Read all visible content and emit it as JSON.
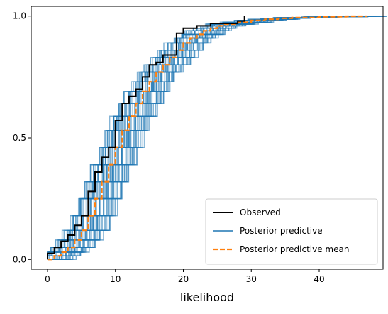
{
  "chart_data": {
    "type": "line",
    "title": "",
    "xlabel": "likelihood",
    "ylabel": "",
    "xlim": [
      -2.4,
      49.4
    ],
    "ylim": [
      -0.04,
      1.04
    ],
    "x_ticks": [
      0,
      10,
      20,
      30,
      40
    ],
    "x_tick_labels": [
      "0",
      "10",
      "20",
      "30",
      "40"
    ],
    "y_ticks": [
      0,
      0.5,
      1
    ],
    "y_tick_labels": [
      "0.0",
      "0.5",
      "1.0"
    ],
    "grid": false,
    "legend_position": "lower-right",
    "colors": {
      "observed": "#000000",
      "posterior_predictive": "#1f77b4",
      "posterior_predictive_mean": "#ff7f0e",
      "frame": "#000000"
    },
    "series": [
      {
        "name": "Observed",
        "style": "step",
        "x": [
          0,
          0,
          1,
          2,
          3,
          4,
          5,
          6,
          7,
          8,
          9,
          10,
          11,
          12,
          13,
          14,
          15,
          16,
          17,
          19,
          20,
          22,
          24,
          28,
          29
        ],
        "y": [
          0,
          0.025,
          0.05,
          0.075,
          0.1,
          0.14,
          0.18,
          0.28,
          0.36,
          0.42,
          0.46,
          0.57,
          0.64,
          0.67,
          0.7,
          0.75,
          0.8,
          0.81,
          0.84,
          0.93,
          0.95,
          0.96,
          0.97,
          0.98,
          1.0
        ]
      },
      {
        "name": "Posterior predictive",
        "style": "step",
        "note_count": 40,
        "x_shift_range": [
          -2.5,
          3.0
        ]
      },
      {
        "name": "Posterior predictive mean",
        "style": "dashed-step",
        "x": [
          0,
          1,
          2,
          3,
          4,
          5,
          6,
          7,
          8,
          9,
          10,
          11,
          12,
          13,
          14,
          15,
          16,
          17,
          18,
          19,
          20,
          21,
          22,
          23,
          24,
          25,
          26,
          28,
          30,
          32,
          34,
          36,
          40,
          44,
          47
        ],
        "y": [
          0,
          0.015,
          0.03,
          0.05,
          0.08,
          0.12,
          0.18,
          0.25,
          0.32,
          0.39,
          0.46,
          0.53,
          0.59,
          0.64,
          0.69,
          0.73,
          0.77,
          0.8,
          0.83,
          0.86,
          0.89,
          0.91,
          0.925,
          0.94,
          0.95,
          0.96,
          0.967,
          0.975,
          0.982,
          0.987,
          0.991,
          0.994,
          0.997,
          0.999,
          1.0
        ]
      }
    ]
  }
}
